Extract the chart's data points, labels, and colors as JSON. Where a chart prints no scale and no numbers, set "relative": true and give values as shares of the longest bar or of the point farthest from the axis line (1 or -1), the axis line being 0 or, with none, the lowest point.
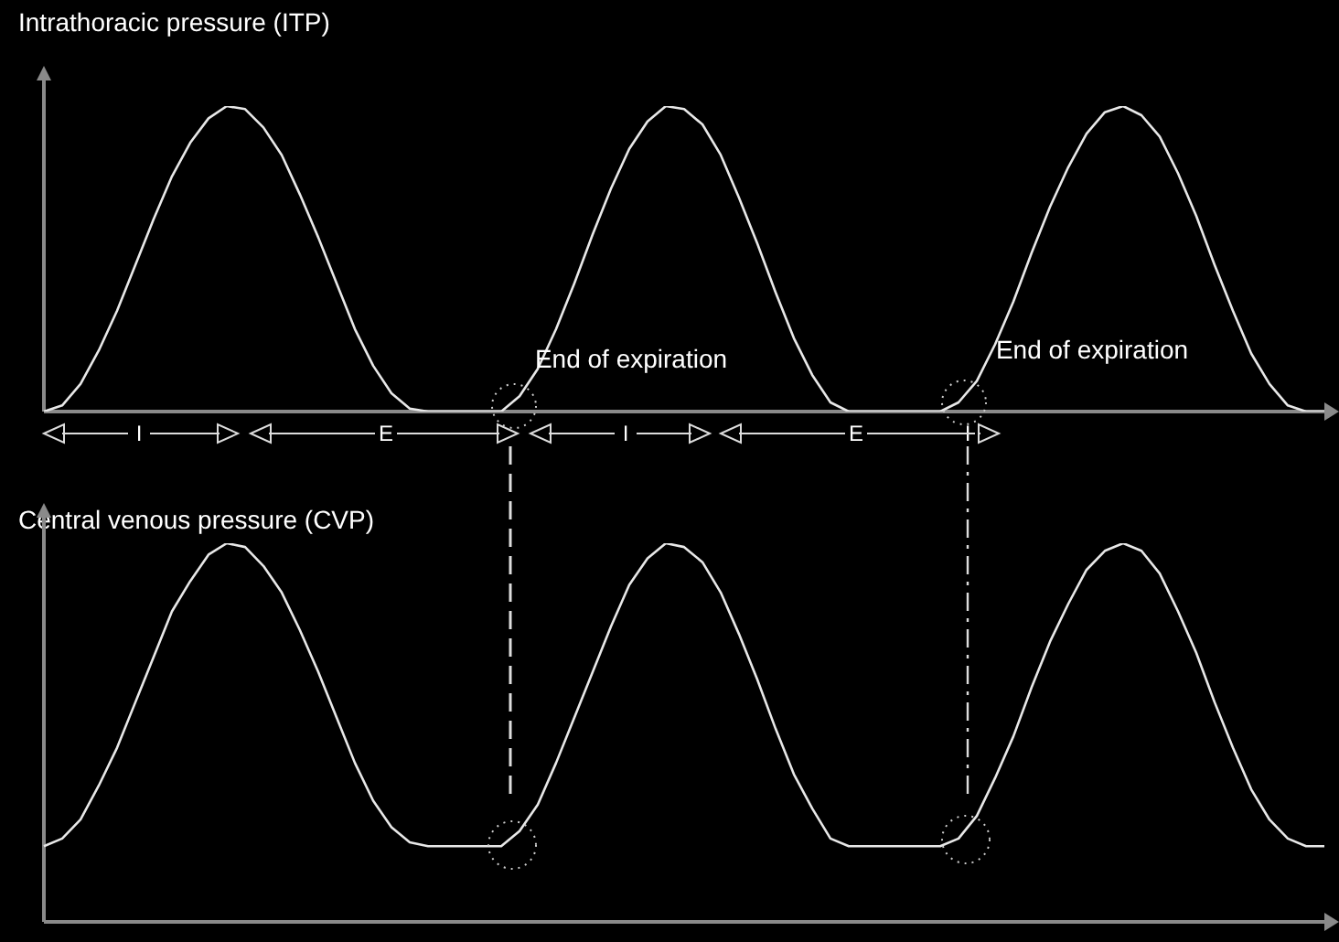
{
  "chart_data": [
    {
      "type": "line",
      "title": "Intrathoracic pressure (ITP)",
      "relative": true,
      "legend": false,
      "marker": "none",
      "line_style": "solid",
      "categories": [
        null,
        null,
        null,
        null,
        null,
        null,
        null,
        null,
        null,
        null,
        null,
        null,
        null,
        null,
        null,
        null,
        null,
        null,
        null,
        null,
        null,
        null,
        null,
        null,
        null,
        null,
        null,
        null,
        null,
        null,
        null,
        null,
        null,
        null,
        null,
        null,
        null,
        null,
        null,
        null,
        null,
        null,
        null,
        null,
        null,
        null,
        null,
        null,
        null,
        null,
        null,
        null,
        null,
        null,
        null,
        null,
        null,
        null,
        null,
        null,
        null,
        null,
        null,
        null,
        null,
        null,
        null,
        null,
        null,
        null,
        null
      ],
      "series": [
        {
          "color": "#e8e8e8",
          "values": [
            0,
            0.02,
            0.09,
            0.2,
            0.33,
            0.48,
            0.63,
            0.77,
            0.88,
            0.96,
            1,
            0.99,
            0.93,
            0.84,
            0.71,
            0.57,
            0.42,
            0.27,
            0.15,
            0.06,
            0.01,
            0,
            0,
            0,
            0,
            0,
            0.05,
            0.14,
            0.27,
            0.42,
            0.58,
            0.73,
            0.86,
            0.95,
            1,
            0.99,
            0.94,
            0.84,
            0.7,
            0.55,
            0.39,
            0.24,
            0.12,
            0.03,
            0,
            0,
            0,
            0,
            0,
            0,
            0.03,
            0.1,
            0.22,
            0.36,
            0.52,
            0.67,
            0.8,
            0.91,
            0.98,
            1,
            0.97,
            0.9,
            0.78,
            0.64,
            0.48,
            0.33,
            0.19,
            0.09,
            0.02,
            0,
            0
          ]
        }
      ],
      "annotations": [
        "End of expiration",
        "End of expiration",
        "I",
        "E",
        "I",
        "E",
        "I"
      ]
    },
    {
      "type": "line",
      "title": "Central venous pressure (CVP)",
      "relative": true,
      "legend": false,
      "marker": "none",
      "line_style": "solid",
      "categories": [
        null,
        null,
        null,
        null,
        null,
        null,
        null,
        null,
        null,
        null,
        null,
        null,
        null,
        null,
        null,
        null,
        null,
        null,
        null,
        null,
        null,
        null,
        null,
        null,
        null,
        null,
        null,
        null,
        null,
        null,
        null,
        null,
        null,
        null,
        null,
        null,
        null,
        null,
        null,
        null,
        null,
        null,
        null,
        null,
        null,
        null,
        null,
        null,
        null,
        null,
        null,
        null,
        null,
        null,
        null,
        null,
        null,
        null,
        null,
        null,
        null,
        null,
        null,
        null,
        null,
        null,
        null,
        null,
        null,
        null,
        null
      ],
      "series": [
        {
          "color": "#e8e8e8",
          "values": [
            0.2,
            0.22,
            0.27,
            0.36,
            0.46,
            0.58,
            0.7,
            0.82,
            0.9,
            0.97,
            1,
            0.99,
            0.94,
            0.87,
            0.77,
            0.66,
            0.54,
            0.42,
            0.32,
            0.25,
            0.21,
            0.2,
            0.2,
            0.2,
            0.2,
            0.2,
            0.24,
            0.31,
            0.42,
            0.54,
            0.66,
            0.78,
            0.89,
            0.96,
            1,
            0.99,
            0.95,
            0.87,
            0.76,
            0.64,
            0.51,
            0.39,
            0.3,
            0.22,
            0.2,
            0.2,
            0.2,
            0.2,
            0.2,
            0.2,
            0.22,
            0.28,
            0.38,
            0.49,
            0.62,
            0.74,
            0.84,
            0.93,
            0.98,
            1,
            0.98,
            0.92,
            0.82,
            0.71,
            0.58,
            0.46,
            0.35,
            0.27,
            0.22,
            0.2,
            0.2
          ]
        }
      ]
    }
  ]
}
